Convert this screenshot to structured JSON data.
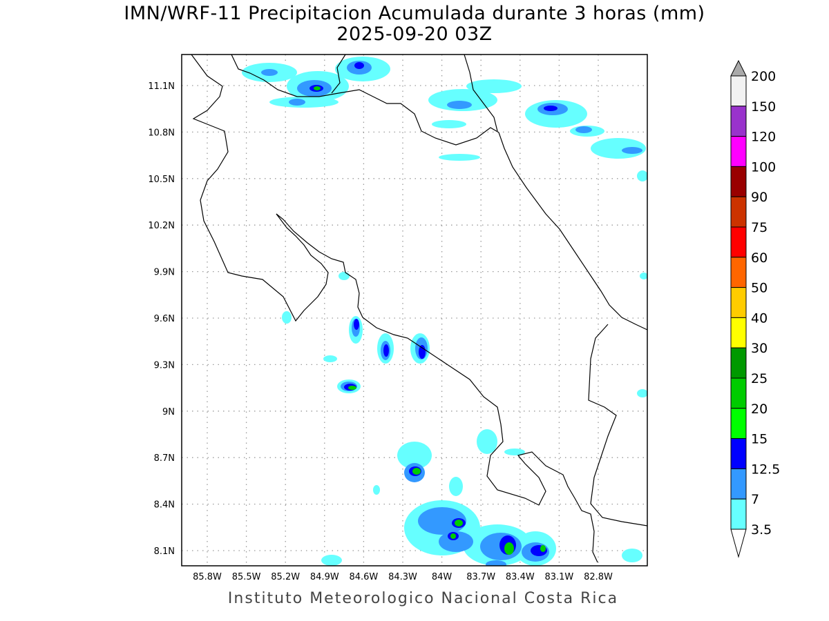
{
  "header": {
    "title": "IMN/WRF-11 Precipitacion Acumulada durante 3 horas (mm)",
    "subtitle": "2025-09-20 03Z"
  },
  "footer": "Instituto Meteorologico Nacional Costa Rica",
  "axes": {
    "lon": [
      "85.8W",
      "85.5W",
      "85.2W",
      "84.9W",
      "84.6W",
      "84.3W",
      "84W",
      "83.7W",
      "83.4W",
      "83.1W",
      "82.8W"
    ],
    "lat": [
      "11.1N",
      "10.8N",
      "10.5N",
      "10.2N",
      "9.9N",
      "9.6N",
      "9.3N",
      "9N",
      "8.7N",
      "8.4N",
      "8.1N"
    ]
  },
  "colorbar": {
    "labels": [
      "200",
      "150",
      "120",
      "100",
      "90",
      "75",
      "60",
      "50",
      "40",
      "30",
      "25",
      "20",
      "15",
      "12.5",
      "7",
      "3.5"
    ],
    "colors": [
      "#f2f2f2",
      "#9933cc",
      "#ff00ff",
      "#990000",
      "#cc3300",
      "#ff0000",
      "#ff6600",
      "#ffcc00",
      "#ffff00",
      "#009900",
      "#00cc00",
      "#00ff00",
      "#0000ff",
      "#3399ff",
      "#66ffff"
    ],
    "over_color": "#aaaaaa",
    "under_color": "#ffffff"
  }
}
